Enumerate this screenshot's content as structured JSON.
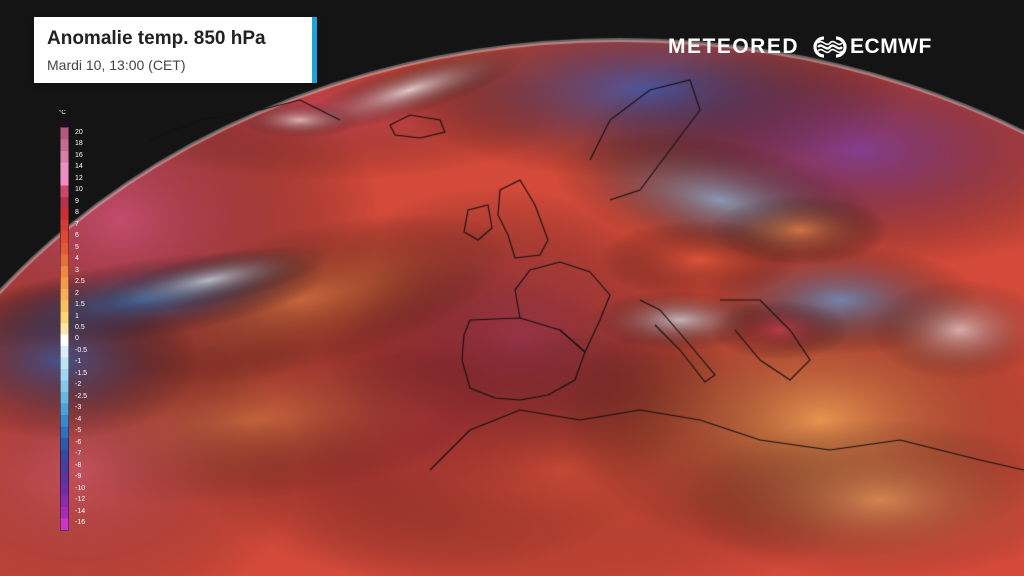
{
  "title": "Anomalie temp. 850 hPa",
  "subtitle": "Mardi 10, 13:00 (CET)",
  "brand": {
    "meteored": "METEORED",
    "ecmwf": "ECMWF"
  },
  "legend": {
    "unit": "°C",
    "ticks": [
      "20",
      "18",
      "16",
      "14",
      "12",
      "10",
      "9",
      "8",
      "7",
      "6",
      "5",
      "4",
      "3",
      "2.5",
      "2",
      "1.5",
      "1",
      "0.5",
      "0",
      "-0.5",
      "-1",
      "-1.5",
      "-2",
      "-2.5",
      "-3",
      "-4",
      "-5",
      "-6",
      "-7",
      "-8",
      "-9",
      "-10",
      "-12",
      "-14",
      "-16"
    ],
    "colors": [
      "#b3597e",
      "#c56a93",
      "#d77fa8",
      "#e694bf",
      "#ef8cc4",
      "#c9486e",
      "#b9304d",
      "#c8303a",
      "#d63a36",
      "#dc4a36",
      "#e05a38",
      "#e6703c",
      "#ee8644",
      "#f39a4c",
      "#f6ae58",
      "#f8c064",
      "#fad478",
      "#fbe6a6",
      "#ffffff",
      "#d9eef8",
      "#bfe3f5",
      "#a3d6f0",
      "#86c7ea",
      "#6ab6e2",
      "#4f9fd8",
      "#3c86cc",
      "#3270bd",
      "#2f5aa9",
      "#3549a0",
      "#473e9e",
      "#5a369e",
      "#6e2fa2",
      "#8a2cab",
      "#a52cb6",
      "#c637c8"
    ]
  },
  "colors": {
    "background": "#141414",
    "ocean": "#d34a3a",
    "title_accent": "#1da1d8"
  },
  "icons": [
    "ecmwf-logo-icon"
  ]
}
